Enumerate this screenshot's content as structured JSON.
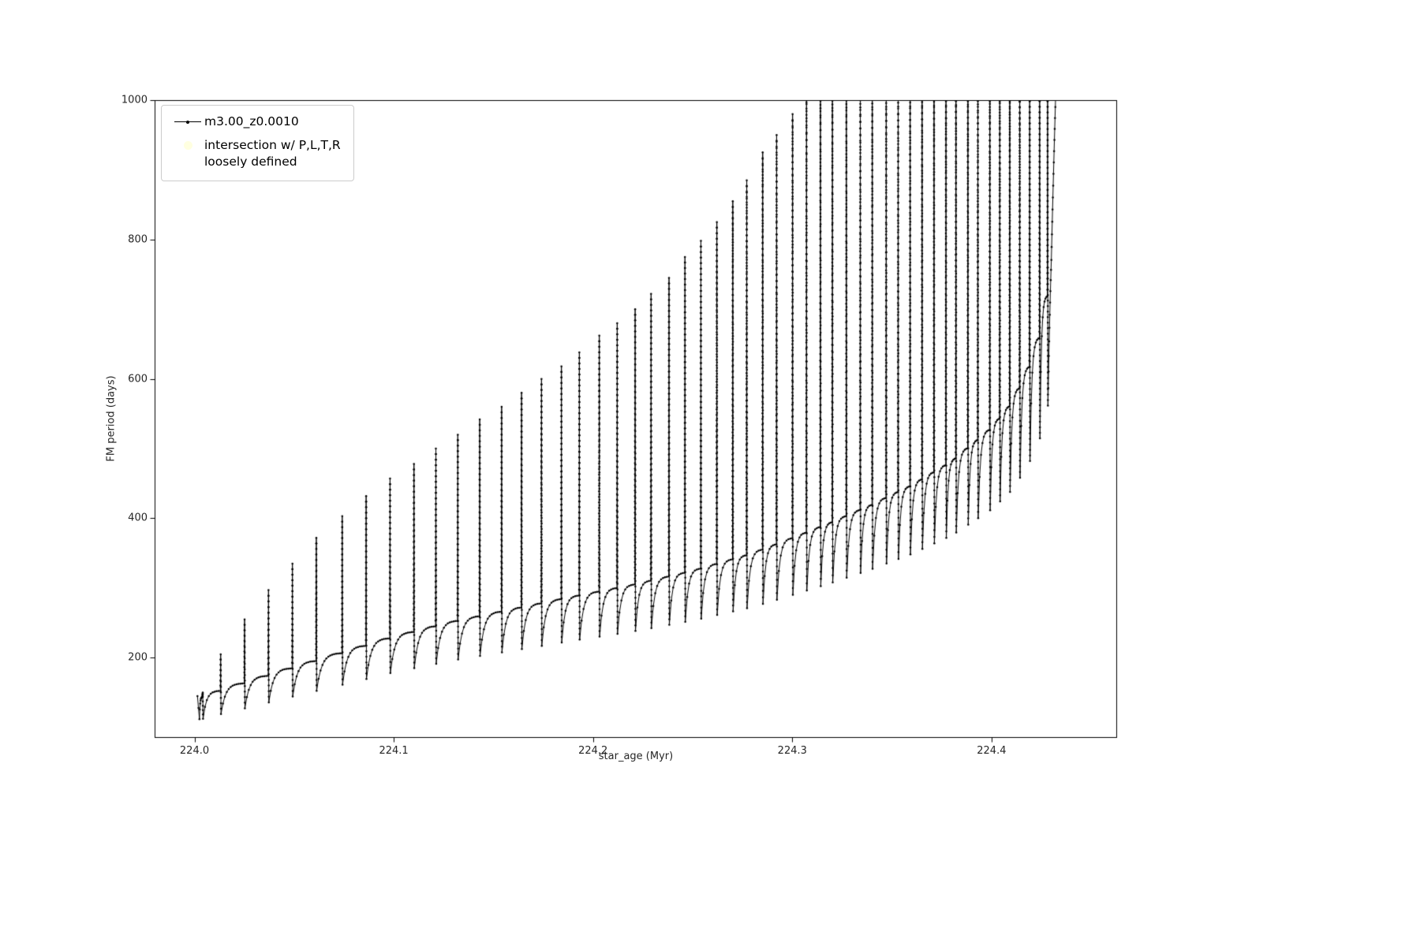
{
  "figure": {
    "background": "#ffffff",
    "legend": {
      "entries": [
        {
          "label": "m3.00_z0.0010",
          "marker": "line-with-dot",
          "color": "#000000"
        },
        {
          "label_lines": [
            "intersection w/ P,L,T,R",
            "loosely defined"
          ],
          "marker": "dot",
          "color": "#ffffe0"
        }
      ]
    }
  },
  "chart_data": {
    "type": "line",
    "title": "",
    "xlabel": "star_age (Myr)",
    "ylabel": "FM period (days)",
    "xlim": [
      223.98,
      224.463
    ],
    "ylim": [
      85,
      1000
    ],
    "xticks": [
      224.0,
      224.1,
      224.2,
      224.3,
      224.4
    ],
    "xtick_labels": [
      "224.0",
      "224.1",
      "224.2",
      "224.3",
      "224.4"
    ],
    "yticks": [
      200,
      400,
      600,
      800,
      1000
    ],
    "ytick_labels": [
      "200",
      "400",
      "600",
      "800",
      "1000"
    ],
    "grid": false,
    "legend_position": "upper left",
    "series": [
      {
        "name": "m3.00_z0.0010",
        "color": "#000000",
        "style": "solid line with point markers",
        "description": "Pulse train: slowly rising baseline of FM period punctuated by narrow spikes whose peaks grow until they exceed the plot top (1000 d); baseline itself rises off-scale near x=224.43.",
        "dip_ratio": 0.78,
        "baseline": [
          [
            224.0,
            140
          ],
          [
            224.01,
            150
          ],
          [
            224.03,
            168
          ],
          [
            224.05,
            186
          ],
          [
            224.08,
            212
          ],
          [
            224.1,
            230
          ],
          [
            224.13,
            252
          ],
          [
            224.16,
            270
          ],
          [
            224.19,
            288
          ],
          [
            224.22,
            305
          ],
          [
            224.25,
            325
          ],
          [
            224.28,
            350
          ],
          [
            224.3,
            372
          ],
          [
            224.32,
            395
          ],
          [
            224.34,
            420
          ],
          [
            224.36,
            448
          ],
          [
            224.38,
            482
          ],
          [
            224.4,
            530
          ],
          [
            224.41,
            565
          ],
          [
            224.418,
            610
          ],
          [
            224.424,
            660
          ],
          [
            224.428,
            720
          ],
          [
            224.43,
            820
          ],
          [
            224.432,
            1000
          ],
          [
            224.434,
            1200
          ]
        ],
        "pulses": [
          [
            224.004,
            150
          ],
          [
            224.013,
            205
          ],
          [
            224.025,
            255
          ],
          [
            224.037,
            297
          ],
          [
            224.049,
            335
          ],
          [
            224.061,
            372
          ],
          [
            224.074,
            403
          ],
          [
            224.086,
            432
          ],
          [
            224.098,
            457
          ],
          [
            224.11,
            478
          ],
          [
            224.121,
            500
          ],
          [
            224.132,
            520
          ],
          [
            224.143,
            542
          ],
          [
            224.154,
            560
          ],
          [
            224.164,
            580
          ],
          [
            224.174,
            600
          ],
          [
            224.184,
            618
          ],
          [
            224.193,
            638
          ],
          [
            224.203,
            662
          ],
          [
            224.212,
            680
          ],
          [
            224.221,
            700
          ],
          [
            224.229,
            722
          ],
          [
            224.238,
            745
          ],
          [
            224.246,
            775
          ],
          [
            224.254,
            798
          ],
          [
            224.262,
            825
          ],
          [
            224.27,
            855
          ],
          [
            224.277,
            885
          ],
          [
            224.285,
            925
          ],
          [
            224.292,
            950
          ],
          [
            224.3,
            980
          ],
          [
            224.307,
            1015
          ],
          [
            224.314,
            1060
          ],
          [
            224.32,
            1090
          ],
          [
            224.327,
            1110
          ],
          [
            224.334,
            1130
          ],
          [
            224.34,
            1145
          ],
          [
            224.347,
            1155
          ],
          [
            224.353,
            1165
          ],
          [
            224.359,
            1175
          ],
          [
            224.365,
            1185
          ],
          [
            224.371,
            1195
          ],
          [
            224.377,
            1200
          ],
          [
            224.382,
            1200
          ],
          [
            224.388,
            1200
          ],
          [
            224.393,
            1200
          ],
          [
            224.399,
            1200
          ],
          [
            224.404,
            1200
          ],
          [
            224.409,
            1200
          ],
          [
            224.414,
            1200
          ],
          [
            224.419,
            1200
          ],
          [
            224.424,
            1200
          ],
          [
            224.428,
            1200
          ]
        ]
      },
      {
        "name": "intersection w/ P,L,T,R loosely defined",
        "color": "#ffffe0",
        "style": "dot marker (no visible points in view)"
      }
    ]
  }
}
